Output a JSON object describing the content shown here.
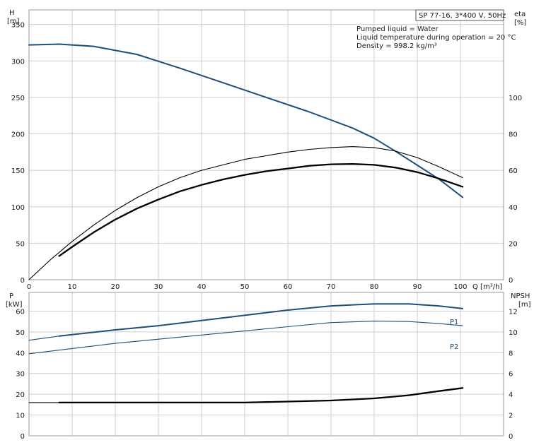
{
  "chart_data": [
    {
      "type": "line",
      "xlabel": "Q [m³/h]",
      "ylabel": "H",
      "ylabel_unit": "[m]",
      "y2label": "eta",
      "y2label_unit": "[%]",
      "xlim": [
        0,
        110
      ],
      "ylim": [
        0,
        370
      ],
      "y2lim": [
        0,
        148
      ],
      "x_ticks": [
        "0",
        "10",
        "20",
        "30",
        "40",
        "50",
        "60",
        "70",
        "80",
        "90",
        "100"
      ],
      "y_ticks": [
        "0",
        "50",
        "100",
        "150",
        "200",
        "250",
        "300",
        "350"
      ],
      "y2_ticks": [
        "0",
        "20",
        "40",
        "60",
        "80",
        "100"
      ],
      "grid": true,
      "title": "SP 77-16, 3*400 V, 50Hz",
      "annotations": [
        "Pumped liquid = Water",
        "Liquid temperature during operation = 20 °C",
        "Density = 998.2 kg/m³"
      ],
      "series": [
        {
          "axis": "left",
          "color": "#1f4e79",
          "width": 2,
          "points": [
            [
              0,
              322
            ],
            [
              7,
              323
            ],
            [
              15,
              320
            ],
            [
              25,
              309
            ],
            [
              35,
              290
            ],
            [
              45,
              270
            ],
            [
              55,
              250
            ],
            [
              65,
              230
            ],
            [
              75,
              208
            ],
            [
              80,
              194
            ],
            [
              85,
              176
            ],
            [
              90,
              157
            ],
            [
              95,
              138
            ],
            [
              100.5,
              113
            ]
          ]
        },
        {
          "axis": "right",
          "color": "#000000",
          "width": 1.1,
          "points": [
            [
              0,
              0
            ],
            [
              5,
              11
            ],
            [
              10,
              21
            ],
            [
              15,
              30
            ],
            [
              20,
              38
            ],
            [
              25,
              45
            ],
            [
              30,
              51
            ],
            [
              35,
              56
            ],
            [
              40,
              60
            ],
            [
              45,
              63
            ],
            [
              50,
              66
            ],
            [
              55,
              68
            ],
            [
              60,
              70
            ],
            [
              65,
              71.5
            ],
            [
              70,
              72.5
            ],
            [
              75,
              73
            ],
            [
              80,
              72.5
            ],
            [
              85,
              70.5
            ],
            [
              90,
              67
            ],
            [
              95,
              62
            ],
            [
              100.5,
              56
            ]
          ]
        },
        {
          "axis": "right",
          "color": "#000000",
          "width": 2.3,
          "points": [
            [
              7,
              13
            ],
            [
              10,
              18
            ],
            [
              15,
              26
            ],
            [
              20,
              33
            ],
            [
              25,
              39
            ],
            [
              30,
              44
            ],
            [
              35,
              48.5
            ],
            [
              40,
              52
            ],
            [
              45,
              55
            ],
            [
              50,
              57.5
            ],
            [
              55,
              59.5
            ],
            [
              60,
              61
            ],
            [
              65,
              62.5
            ],
            [
              70,
              63.3
            ],
            [
              75,
              63.5
            ],
            [
              80,
              63
            ],
            [
              85,
              61.5
            ],
            [
              90,
              59
            ],
            [
              95,
              55.5
            ],
            [
              100.5,
              51
            ]
          ]
        }
      ]
    },
    {
      "type": "line",
      "xlim": [
        0,
        110
      ],
      "ylim": [
        0,
        69
      ],
      "y2lim": [
        0,
        13.8
      ],
      "ylabel": "P",
      "ylabel_unit": "[kW]",
      "y2label": "NPSH",
      "y2label_unit": "[m]",
      "y_ticks": [
        "0",
        "10",
        "20",
        "30",
        "40",
        "50",
        "60"
      ],
      "y2_ticks": [
        "0",
        "2",
        "4",
        "6",
        "8",
        "10",
        "12"
      ],
      "grid": true,
      "series": [
        {
          "name": "P1",
          "axis": "left",
          "color": "#1f4e79",
          "width": 1.1,
          "points": [
            [
              0,
              46
            ],
            [
              7,
              48
            ],
            [
              20,
              51
            ],
            [
              30,
              53
            ],
            [
              40,
              55.5
            ],
            [
              50,
              58
            ],
            [
              60,
              60.5
            ],
            [
              70,
              62.5
            ],
            [
              80,
              63.5
            ],
            [
              88,
              63.5
            ],
            [
              95,
              62.5
            ],
            [
              100.5,
              61.2
            ]
          ]
        },
        {
          "name": "P1",
          "axis": "left",
          "color": "#1f4e79",
          "width": 2,
          "points": [
            [
              7,
              48
            ],
            [
              20,
              51
            ],
            [
              30,
              53
            ],
            [
              40,
              55.5
            ],
            [
              50,
              58
            ],
            [
              60,
              60.5
            ],
            [
              70,
              62.5
            ],
            [
              80,
              63.5
            ],
            [
              88,
              63.5
            ],
            [
              95,
              62.5
            ],
            [
              100.5,
              61.2
            ]
          ]
        },
        {
          "name": "P2",
          "axis": "left",
          "color": "#1f4e79",
          "width": 1.1,
          "points": [
            [
              0,
              39.5
            ],
            [
              10,
              42
            ],
            [
              20,
              44.5
            ],
            [
              30,
              46.5
            ],
            [
              40,
              48.5
            ],
            [
              50,
              50.5
            ],
            [
              60,
              52.5
            ],
            [
              70,
              54.5
            ],
            [
              80,
              55.2
            ],
            [
              88,
              55
            ],
            [
              95,
              54
            ],
            [
              100.5,
              53
            ]
          ]
        },
        {
          "axis": "right",
          "color": "#000000",
          "width": 1.1,
          "points": [
            [
              0,
              3.2
            ],
            [
              7,
              3.2
            ]
          ]
        },
        {
          "axis": "right",
          "color": "#000000",
          "width": 2.3,
          "points": [
            [
              7,
              3.2
            ],
            [
              20,
              3.2
            ],
            [
              30,
              3.2
            ],
            [
              40,
              3.2
            ],
            [
              50,
              3.2
            ],
            [
              60,
              3.3
            ],
            [
              70,
              3.4
            ],
            [
              80,
              3.6
            ],
            [
              88,
              3.9
            ],
            [
              95,
              4.3
            ],
            [
              100.5,
              4.6
            ]
          ]
        }
      ]
    }
  ]
}
